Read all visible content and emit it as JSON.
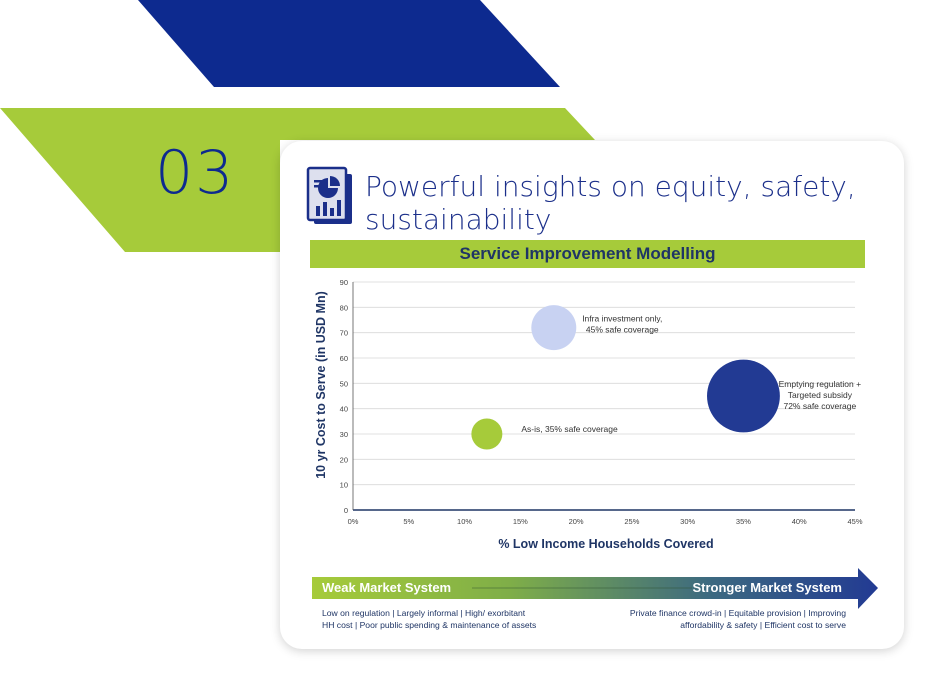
{
  "section_number": "03",
  "card": {
    "title_line1": "Powerful insights on equity, safety,",
    "title_line2": "sustainability",
    "icon": "report-chart-icon"
  },
  "chart_data": {
    "type": "scatter",
    "title": "Service Improvement Modelling",
    "xlabel": "% Low Income Households Covered",
    "ylabel": "10 yr Cost to Serve (in USD Mn)",
    "xlim": [
      0,
      45
    ],
    "ylim": [
      0,
      90
    ],
    "x_ticks": [
      "0%",
      "5%",
      "10%",
      "15%",
      "20%",
      "25%",
      "30%",
      "35%",
      "40%",
      "45%"
    ],
    "y_ticks": [
      "0",
      "10",
      "20",
      "30",
      "40",
      "50",
      "60",
      "70",
      "80",
      "90"
    ],
    "grid": true,
    "points": [
      {
        "x": 12,
        "y": 30,
        "size": 1,
        "color": "#a6cb3a",
        "label_lines": [
          "As-is, 35% safe coverage"
        ]
      },
      {
        "x": 18,
        "y": 72,
        "size": 1.45,
        "color": "#c8d2f2",
        "label_lines": [
          "Infra investment only,",
          "45% safe coverage"
        ]
      },
      {
        "x": 35,
        "y": 45,
        "size": 2.35,
        "color": "#223a93",
        "label_lines": [
          "Emptying regulation +",
          "Targeted subsidy",
          "72% safe coverage"
        ]
      }
    ]
  },
  "market_scale": {
    "weak_label": "Weak Market System",
    "strong_label": "Stronger Market System",
    "weak_desc_line1": "Low on regulation | Largely informal | High/ exorbitant",
    "weak_desc_line2": "HH cost | Poor public spending & maintenance of assets",
    "strong_desc_line1": "Private finance crowd-in  | Equitable provision | Improving",
    "strong_desc_line2": "affordability & safety | Efficient cost to serve"
  },
  "colors": {
    "navy": "#0d2a8f",
    "lime": "#a6cb3a",
    "light_blue": "#c8d2f2",
    "dark_text": "#1f3565"
  }
}
